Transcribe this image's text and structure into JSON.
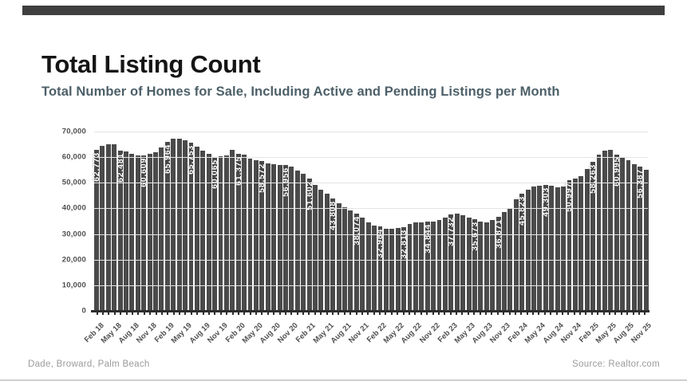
{
  "header": {
    "title": "Total Listing Count",
    "subtitle": "Total Number of Homes for Sale, Including Active and Pending Listings per Month"
  },
  "footer": {
    "left": "Dade, Broward, Palm Beach",
    "right": "Source: Realtor.com"
  },
  "colors": {
    "top_bar": "#3f3f3f",
    "bar": "#4a4a4a",
    "title_text": "#151515",
    "subtitle_text": "#4d6069",
    "grid": "#e4e4e4",
    "axis": "#2d2d2d",
    "tick_text": "#4f4f4f",
    "bar_label_text": "#ffffff",
    "footer_text": "#9b9b9b"
  },
  "chart_data": {
    "type": "bar",
    "title": "Total Listing Count",
    "subtitle": "Total Number of Homes for Sale, Including Active and Pending Listings per Month",
    "xlabel": "",
    "ylabel": "",
    "ylim": [
      0,
      70000
    ],
    "y_ticks": [
      0,
      10000,
      20000,
      30000,
      40000,
      50000,
      60000,
      70000
    ],
    "grid": true,
    "legend": false,
    "tick_every": 3,
    "data_label_every": 4,
    "x": [
      "Feb 18",
      "Mar 18",
      "Apr 18",
      "May 18",
      "Jun 18",
      "Jul 18",
      "Aug 18",
      "Sep 18",
      "Oct 18",
      "Nov 18",
      "Dec 18",
      "Jan 19",
      "Feb 19",
      "Mar 19",
      "Apr 19",
      "May 19",
      "Jun 19",
      "Jul 19",
      "Aug 19",
      "Sep 19",
      "Oct 19",
      "Nov 19",
      "Dec 19",
      "Jan 20",
      "Feb 20",
      "Mar 20",
      "Apr 20",
      "May 20",
      "Jun 20",
      "Jul 20",
      "Aug 20",
      "Sep 20",
      "Oct 20",
      "Nov 20",
      "Dec 20",
      "Jan 21",
      "Feb 21",
      "Mar 21",
      "Apr 21",
      "May 21",
      "Jun 21",
      "Jul 21",
      "Aug 21",
      "Sep 21",
      "Oct 21",
      "Nov 21",
      "Dec 21",
      "Jan 22",
      "Feb 22",
      "Mar 22",
      "Apr 22",
      "May 22",
      "Jun 22",
      "Jul 22",
      "Aug 22",
      "Sep 22",
      "Oct 22",
      "Nov 22",
      "Dec 22",
      "Jan 23",
      "Feb 23",
      "Mar 23",
      "Apr 23",
      "May 23",
      "Jun 23",
      "Jul 23",
      "Aug 23",
      "Sep 23",
      "Oct 23",
      "Nov 23",
      "Dec 23",
      "Jan 24",
      "Feb 24",
      "Mar 24",
      "Apr 24",
      "May 24",
      "Jun 24",
      "Jul 24",
      "Aug 24",
      "Sep 24",
      "Oct 24",
      "Nov 24",
      "Dec 24",
      "Jan 25",
      "Feb 25",
      "Mar 25",
      "Apr 25",
      "May 25",
      "Jun 25",
      "Jul 25",
      "Aug 25",
      "Sep 25",
      "Oct 25",
      "Nov 25"
    ],
    "values": [
      62773,
      64300,
      64900,
      65000,
      62481,
      62200,
      61200,
      60800,
      60609,
      61300,
      61900,
      63800,
      65964,
      67200,
      67300,
      66600,
      65753,
      64000,
      62600,
      61300,
      60065,
      60300,
      60800,
      62900,
      61375,
      61000,
      59400,
      58900,
      58572,
      57600,
      57100,
      57000,
      56956,
      56400,
      54900,
      53400,
      51602,
      49300,
      47200,
      45600,
      43808,
      41900,
      40300,
      39200,
      38074,
      36300,
      34400,
      33300,
      32984,
      32100,
      31900,
      32300,
      32813,
      33900,
      34500,
      34500,
      34844,
      35000,
      35400,
      36400,
      37732,
      38100,
      37400,
      36500,
      35673,
      34900,
      34500,
      35400,
      36871,
      38600,
      40100,
      43600,
      45823,
      47300,
      48400,
      48900,
      49303,
      48700,
      48200,
      48500,
      50997,
      51600,
      52600,
      55400,
      58263,
      60900,
      62600,
      63000,
      60995,
      59800,
      58700,
      57300,
      56387,
      55100
    ],
    "labeled_values": [
      62773,
      62481,
      60609,
      65964,
      65753,
      60065,
      61375,
      58572,
      56956,
      51602,
      43808,
      38074,
      32984,
      32813,
      34844,
      37732,
      35673,
      36871,
      45823,
      49303,
      50997,
      58263,
      60995,
      56387
    ]
  }
}
